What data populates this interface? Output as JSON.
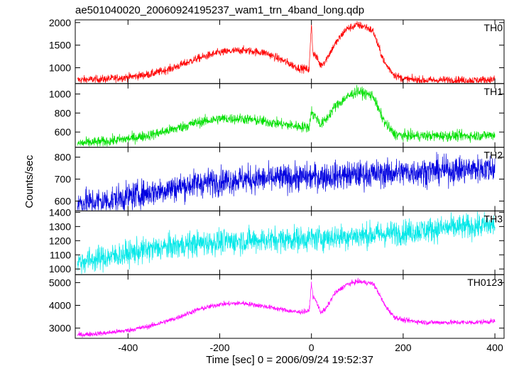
{
  "title": "ae501040020_20060924195237_wam1_trn_4band_long.qdp",
  "xlabel": "Time [sec] 0 = 2006/09/24 19:52:37",
  "ylabel": "Counts/sec",
  "chart_data": [
    {
      "type": "line",
      "name": "TH0",
      "color": "#ff0000",
      "xlim": [
        -515,
        420
      ],
      "ylim": [
        650,
        2060
      ],
      "yticks": [
        1000,
        1500,
        2000
      ],
      "xticks": [
        -400,
        -200,
        0,
        200,
        400
      ],
      "noise": 45,
      "x": [
        -510,
        -450,
        -400,
        -350,
        -300,
        -250,
        -200,
        -150,
        -100,
        -60,
        -30,
        -5,
        0,
        3,
        10,
        20,
        30,
        50,
        75,
        100,
        120,
        135,
        145,
        160,
        180,
        200,
        250,
        300,
        350,
        400
      ],
      "values": [
        730,
        750,
        790,
        860,
        1000,
        1200,
        1340,
        1390,
        1330,
        1150,
        1000,
        960,
        2000,
        1350,
        1250,
        1050,
        1150,
        1500,
        1850,
        1950,
        1900,
        1800,
        1500,
        1100,
        850,
        750,
        720,
        730,
        720,
        740
      ]
    },
    {
      "type": "line",
      "name": "TH1",
      "color": "#00e000",
      "xlim": [
        -515,
        420
      ],
      "ylim": [
        440,
        1110
      ],
      "yticks": [
        600,
        800,
        1000
      ],
      "xticks": [
        -400,
        -200,
        0,
        200,
        400
      ],
      "noise": 28,
      "x": [
        -510,
        -450,
        -400,
        -350,
        -300,
        -250,
        -200,
        -150,
        -100,
        -60,
        -30,
        -5,
        0,
        3,
        10,
        20,
        30,
        50,
        75,
        100,
        120,
        135,
        145,
        160,
        180,
        200,
        250,
        300,
        350,
        400
      ],
      "values": [
        480,
        500,
        530,
        570,
        630,
        700,
        740,
        740,
        710,
        680,
        660,
        650,
        830,
        780,
        760,
        680,
        720,
        860,
        960,
        1030,
        1000,
        980,
        850,
        700,
        580,
        560,
        560,
        560,
        560,
        570
      ]
    },
    {
      "type": "line",
      "name": "TH2",
      "color": "#0000e0",
      "xlim": [
        -515,
        420
      ],
      "ylim": [
        555,
        845
      ],
      "yticks": [
        600,
        700,
        800
      ],
      "xticks": [
        -400,
        -200,
        0,
        200,
        400
      ],
      "noise": 32,
      "x": [
        -510,
        -450,
        -400,
        -350,
        -300,
        -250,
        -200,
        -150,
        -100,
        -50,
        0,
        50,
        100,
        150,
        200,
        250,
        300,
        350,
        400
      ],
      "values": [
        590,
        600,
        620,
        640,
        660,
        680,
        690,
        700,
        700,
        705,
        710,
        715,
        720,
        725,
        730,
        735,
        740,
        745,
        750
      ]
    },
    {
      "type": "line",
      "name": "TH3",
      "color": "#00e8e8",
      "xlim": [
        -515,
        420
      ],
      "ylim": [
        960,
        1410
      ],
      "yticks": [
        1000,
        1100,
        1200,
        1300,
        1400
      ],
      "xticks": [
        -400,
        -200,
        0,
        200,
        400
      ],
      "noise": 45,
      "x": [
        -510,
        -450,
        -400,
        -350,
        -300,
        -250,
        -200,
        -150,
        -100,
        -50,
        0,
        50,
        100,
        150,
        200,
        250,
        300,
        350,
        400
      ],
      "values": [
        1050,
        1080,
        1110,
        1140,
        1160,
        1180,
        1190,
        1200,
        1205,
        1210,
        1215,
        1225,
        1235,
        1245,
        1260,
        1275,
        1290,
        1300,
        1310
      ]
    },
    {
      "type": "line",
      "name": "TH0123",
      "color": "#ff00ff",
      "xlim": [
        -515,
        420
      ],
      "ylim": [
        2550,
        5350
      ],
      "yticks": [
        3000,
        4000,
        5000
      ],
      "xticks": [
        -400,
        -200,
        0,
        200,
        400
      ],
      "noise": 55,
      "x": [
        -510,
        -450,
        -400,
        -350,
        -300,
        -250,
        -200,
        -150,
        -100,
        -60,
        -30,
        -5,
        0,
        3,
        10,
        20,
        30,
        50,
        75,
        100,
        120,
        135,
        145,
        160,
        180,
        200,
        250,
        300,
        350,
        400
      ],
      "values": [
        2700,
        2780,
        2900,
        3100,
        3400,
        3800,
        4050,
        4100,
        3950,
        3800,
        3700,
        3750,
        5000,
        4400,
        4200,
        3700,
        3800,
        4500,
        4900,
        5050,
        5000,
        4950,
        4600,
        4000,
        3500,
        3350,
        3250,
        3250,
        3250,
        3300
      ]
    }
  ]
}
